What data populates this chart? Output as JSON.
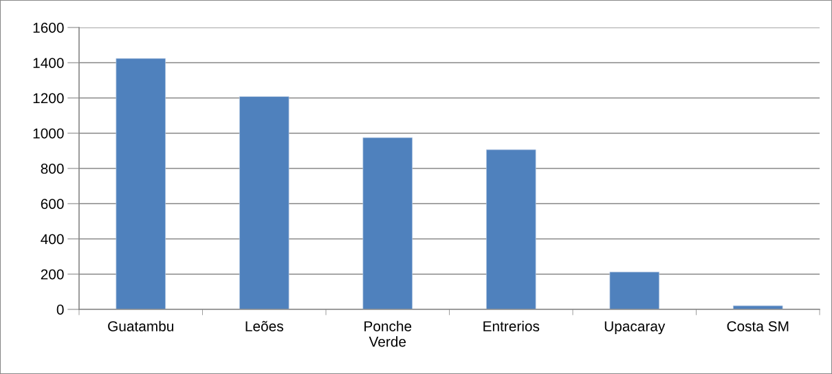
{
  "chart_data": {
    "type": "bar",
    "categories": [
      "Guatambu",
      "Leões",
      "Ponche\nVerde",
      "Entrerios",
      "Upacaray",
      "Costa SM"
    ],
    "values": [
      1424,
      1208,
      975,
      906,
      212,
      20
    ],
    "color": "#4f81bd",
    "ylim": [
      0,
      1600
    ],
    "yticks": [
      0,
      200,
      400,
      600,
      800,
      1000,
      1200,
      1400,
      1600
    ],
    "grid": "y",
    "legend": false
  }
}
